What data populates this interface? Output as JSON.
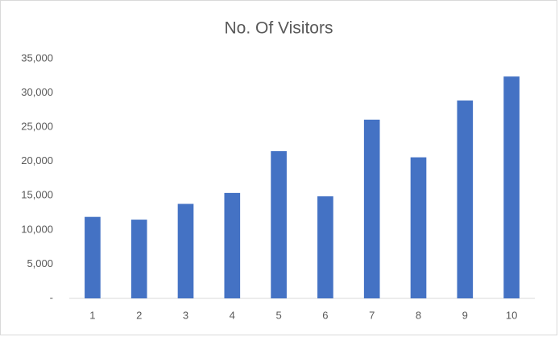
{
  "chart_data": {
    "type": "bar",
    "title": "No. Of Visitors",
    "categories": [
      "1",
      "2",
      "3",
      "4",
      "5",
      "6",
      "7",
      "8",
      "9",
      "10"
    ],
    "values": [
      11900,
      11500,
      13800,
      15400,
      21500,
      14900,
      26100,
      20600,
      28900,
      32400
    ],
    "color": "#4472c4",
    "ylim": [
      0,
      35000
    ],
    "yticks": [
      {
        "value": 0,
        "label": "-"
      },
      {
        "value": 5000,
        "label": "5,000"
      },
      {
        "value": 10000,
        "label": "10,000"
      },
      {
        "value": 15000,
        "label": "15,000"
      },
      {
        "value": 20000,
        "label": "20,000"
      },
      {
        "value": 25000,
        "label": "25,000"
      },
      {
        "value": 30000,
        "label": "30,000"
      },
      {
        "value": 35000,
        "label": "35,000"
      }
    ],
    "grid": false
  }
}
